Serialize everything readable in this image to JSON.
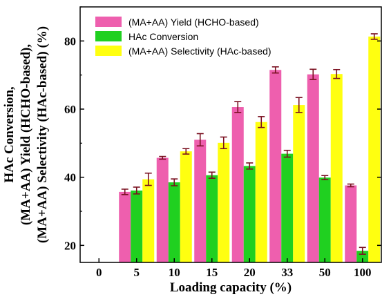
{
  "chart_data": {
    "type": "bar",
    "categories": [
      "0",
      "5",
      "10",
      "15",
      "20",
      "33",
      "50",
      "100"
    ],
    "series": [
      {
        "name": "(MA+AA) Yield (HCHO-based)",
        "color": "#ee5fae",
        "values": [
          null,
          35.7,
          45.7,
          51.0,
          60.6,
          71.5,
          70.2,
          37.6
        ],
        "errors": [
          null,
          0.8,
          0.4,
          1.8,
          1.6,
          0.9,
          1.5,
          0.4
        ]
      },
      {
        "name": "HAc Conversion",
        "color": "#20d020",
        "values": [
          null,
          36.1,
          38.5,
          40.6,
          43.3,
          46.9,
          39.9,
          18.4
        ],
        "errors": [
          null,
          1.0,
          1.0,
          0.9,
          0.9,
          1.0,
          0.6,
          1.0
        ]
      },
      {
        "name": "(MA+AA) Selectivity (HAc-based)",
        "color": "#ffff10",
        "values": [
          null,
          39.4,
          47.6,
          50.1,
          56.2,
          61.2,
          70.3,
          81.3
        ],
        "errors": [
          null,
          1.8,
          0.8,
          1.7,
          1.6,
          2.2,
          1.3,
          0.8
        ]
      }
    ],
    "xlabel": "Loading capacity (%)",
    "ylabel_lines": [
      "HAc Conversion,",
      "(MA+AA) Yield (HCHO-based),",
      "(MA+AA) Selectivity (HAc-based) (%)"
    ],
    "ylim": [
      15,
      90
    ],
    "yticks": [
      20,
      40,
      60,
      80
    ],
    "error_color": "#7a1020",
    "legend_position": "top-left",
    "grid": false
  }
}
